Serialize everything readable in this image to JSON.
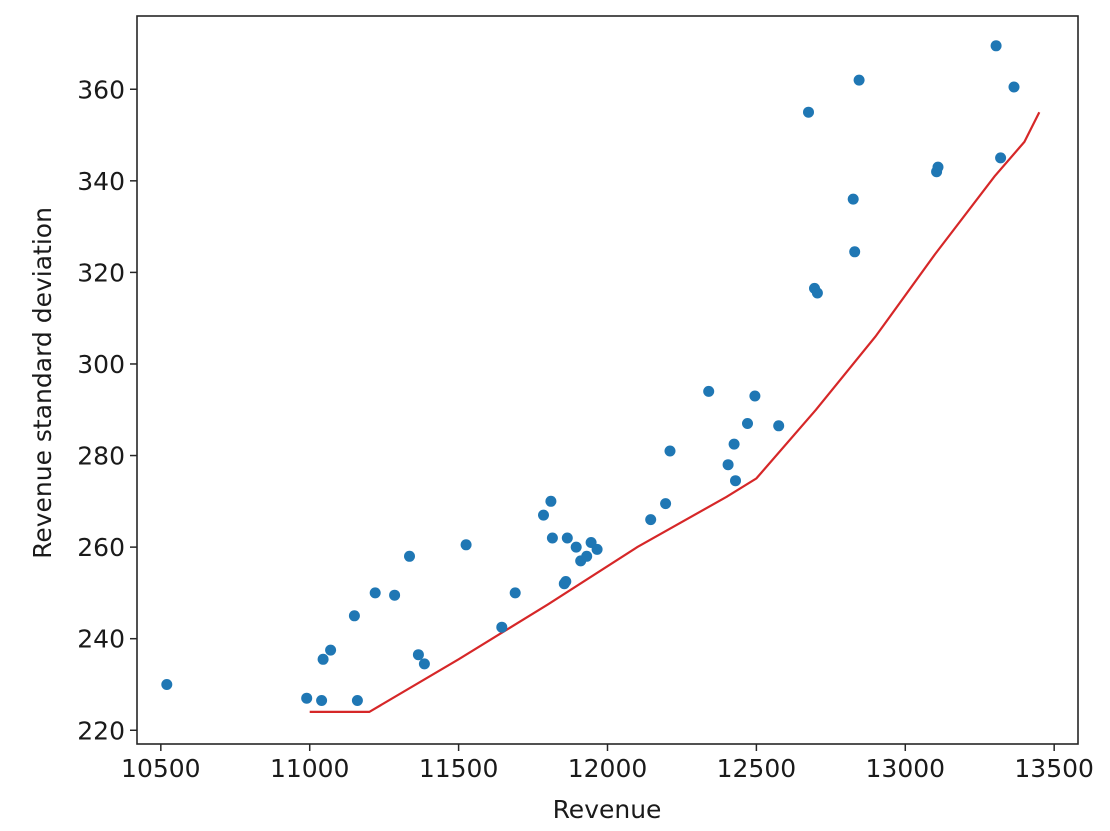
{
  "chart_data": {
    "type": "scatter",
    "title": "",
    "xlabel": "Revenue",
    "ylabel": "Revenue standard deviation",
    "xlim": [
      10420,
      13580
    ],
    "ylim": [
      217,
      376
    ],
    "xticks": [
      10500,
      11000,
      11500,
      12000,
      12500,
      13000,
      13500
    ],
    "yticks": [
      220,
      240,
      260,
      280,
      300,
      320,
      340,
      360
    ],
    "grid": false,
    "legend": "none",
    "series": [
      {
        "kind": "scatter",
        "color": "#1f77b4",
        "points": [
          [
            10520,
            230
          ],
          [
            10990,
            227
          ],
          [
            11040,
            226.5
          ],
          [
            11045,
            235.5
          ],
          [
            11070,
            237.5
          ],
          [
            11150,
            245
          ],
          [
            11160,
            226.5
          ],
          [
            11220,
            250
          ],
          [
            11285,
            249.5
          ],
          [
            11335,
            258
          ],
          [
            11365,
            236.5
          ],
          [
            11385,
            234.5
          ],
          [
            11525,
            260.5
          ],
          [
            11645,
            242.5
          ],
          [
            11690,
            250
          ],
          [
            11785,
            267
          ],
          [
            11810,
            270
          ],
          [
            11815,
            262
          ],
          [
            11855,
            252
          ],
          [
            11860,
            252.5
          ],
          [
            11865,
            262
          ],
          [
            11895,
            260
          ],
          [
            11910,
            257
          ],
          [
            11930,
            258
          ],
          [
            11945,
            261
          ],
          [
            11965,
            259.5
          ],
          [
            12145,
            266
          ],
          [
            12195,
            269.5
          ],
          [
            12210,
            281
          ],
          [
            12340,
            294
          ],
          [
            12405,
            278
          ],
          [
            12425,
            282.5
          ],
          [
            12430,
            274.5
          ],
          [
            12470,
            287
          ],
          [
            12495,
            293
          ],
          [
            12575,
            286.5
          ],
          [
            12675,
            355
          ],
          [
            12695,
            316.5
          ],
          [
            12705,
            315.5
          ],
          [
            12825,
            336
          ],
          [
            12830,
            324.5
          ],
          [
            12845,
            362
          ],
          [
            13105,
            342
          ],
          [
            13110,
            343
          ],
          [
            13305,
            369.5
          ],
          [
            13320,
            345
          ],
          [
            13365,
            360.5
          ]
        ]
      },
      {
        "kind": "line",
        "color": "#d62728",
        "points": [
          [
            11000,
            224
          ],
          [
            11200,
            224
          ],
          [
            11500,
            235.5
          ],
          [
            11800,
            247.5
          ],
          [
            12100,
            260
          ],
          [
            12400,
            271
          ],
          [
            12500,
            275
          ],
          [
            12700,
            290
          ],
          [
            12900,
            306
          ],
          [
            13100,
            324
          ],
          [
            13300,
            341
          ],
          [
            13400,
            348.5
          ],
          [
            13450,
            355
          ]
        ]
      }
    ]
  }
}
